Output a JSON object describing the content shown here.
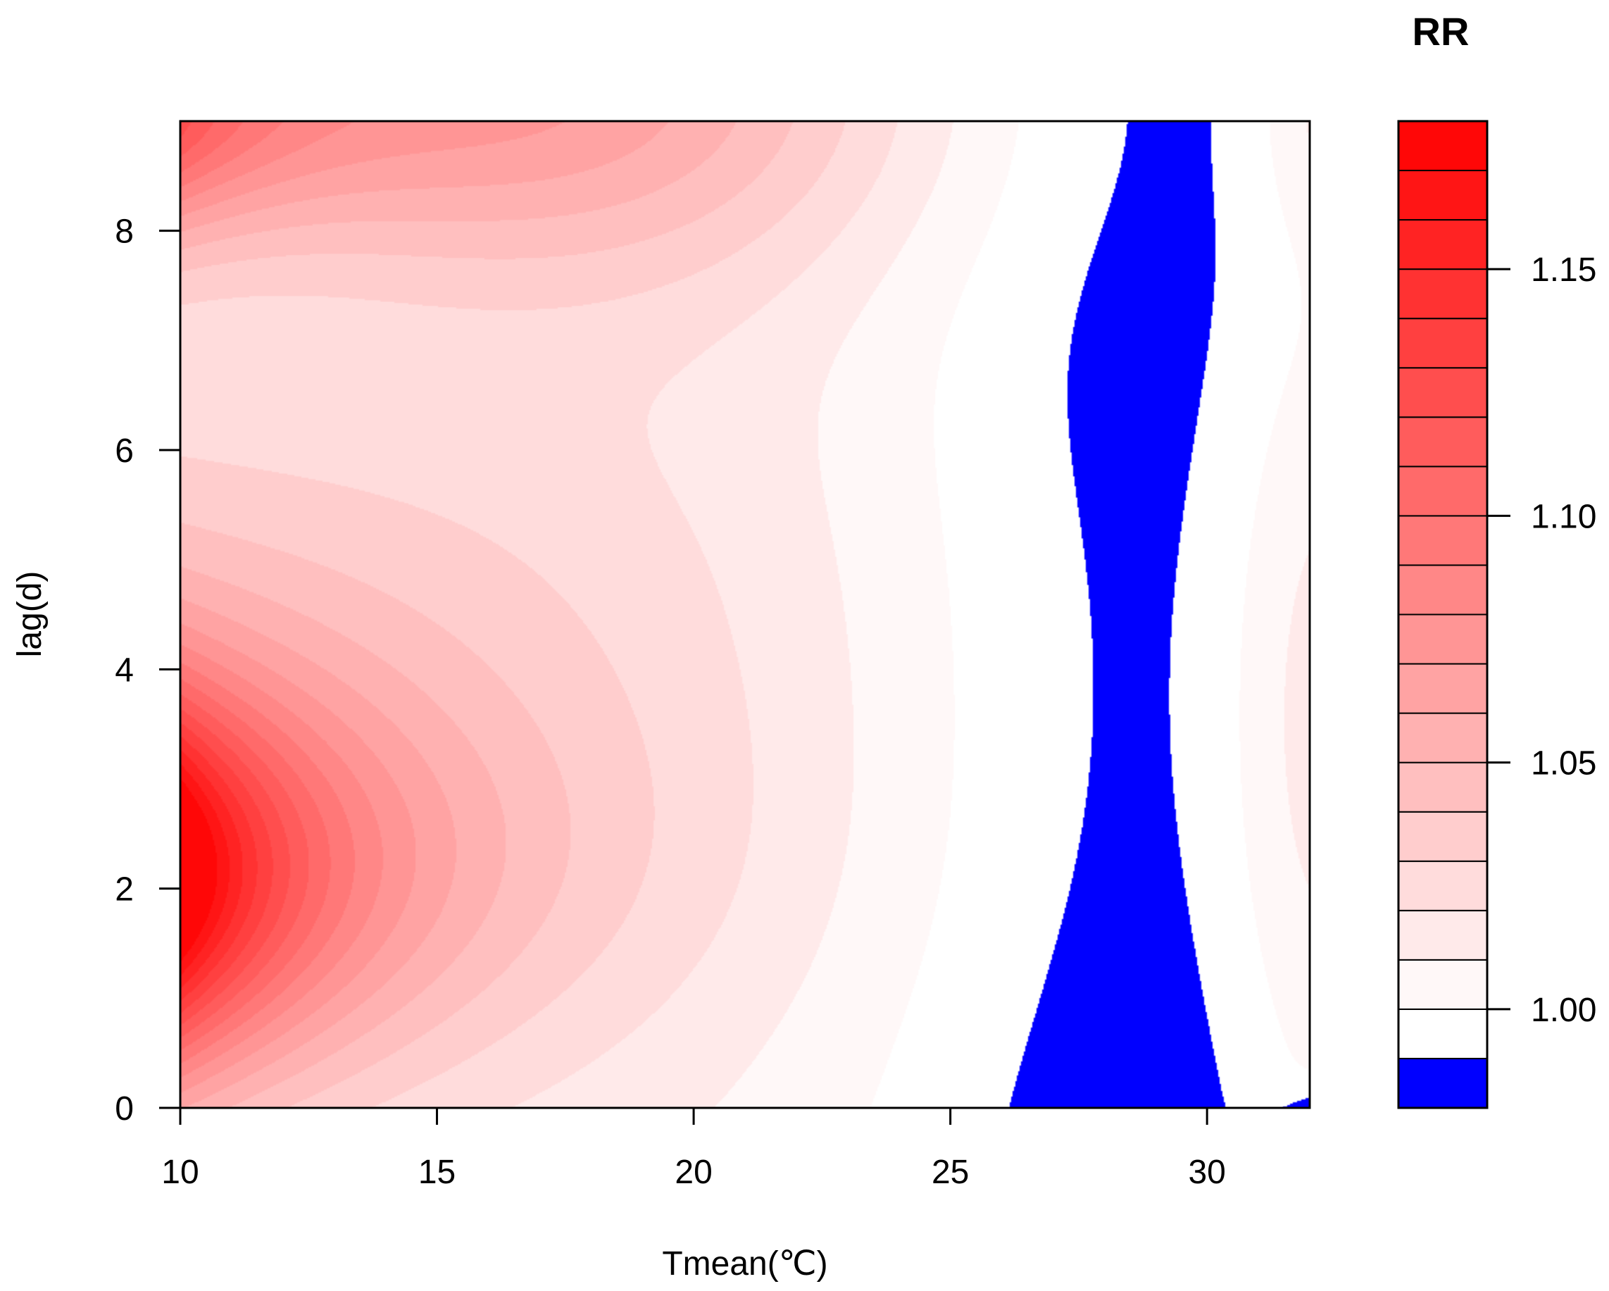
{
  "chart_data": {
    "type": "heatmap",
    "subtype": "filled-contour",
    "xlabel": "Tmean(℃)",
    "ylabel": "lag(d)",
    "xlim": [
      10,
      32
    ],
    "ylim": [
      0,
      9
    ],
    "x_ticks": [
      "10",
      "15",
      "20",
      "25",
      "30"
    ],
    "y_ticks": [
      "0",
      "2",
      "4",
      "6",
      "8"
    ],
    "colorbar": {
      "title": "RR",
      "range": [
        0.98,
        1.18
      ],
      "levels": [
        0.98,
        0.99,
        1.0,
        1.01,
        1.02,
        1.03,
        1.04,
        1.05,
        1.06,
        1.07,
        1.08,
        1.09,
        1.1,
        1.11,
        1.12,
        1.13,
        1.14,
        1.15,
        1.16,
        1.17,
        1.18
      ],
      "tick_values": [
        1.0,
        1.05,
        1.1,
        1.15
      ],
      "tick_labels": [
        "1.00",
        "1.05",
        "1.10",
        "1.15"
      ],
      "low_color": "#0000ff",
      "mid_color": "#ffffff",
      "high_color": "#ff0000"
    },
    "surface": {
      "description_points": [
        {
          "x": 10,
          "y": 2,
          "RR": 1.17
        },
        {
          "x": 10,
          "y": 9,
          "RR": 1.09
        },
        {
          "x": 11,
          "y": 7,
          "RR": 1.0
        },
        {
          "x": 17,
          "y": 9,
          "RR": 1.05
        },
        {
          "x": 28,
          "y": 5,
          "RR": 1.0
        },
        {
          "x": 32,
          "y": 3,
          "RR": 1.02
        },
        {
          "x": 32,
          "y": 0,
          "RR": 0.99
        }
      ]
    }
  }
}
